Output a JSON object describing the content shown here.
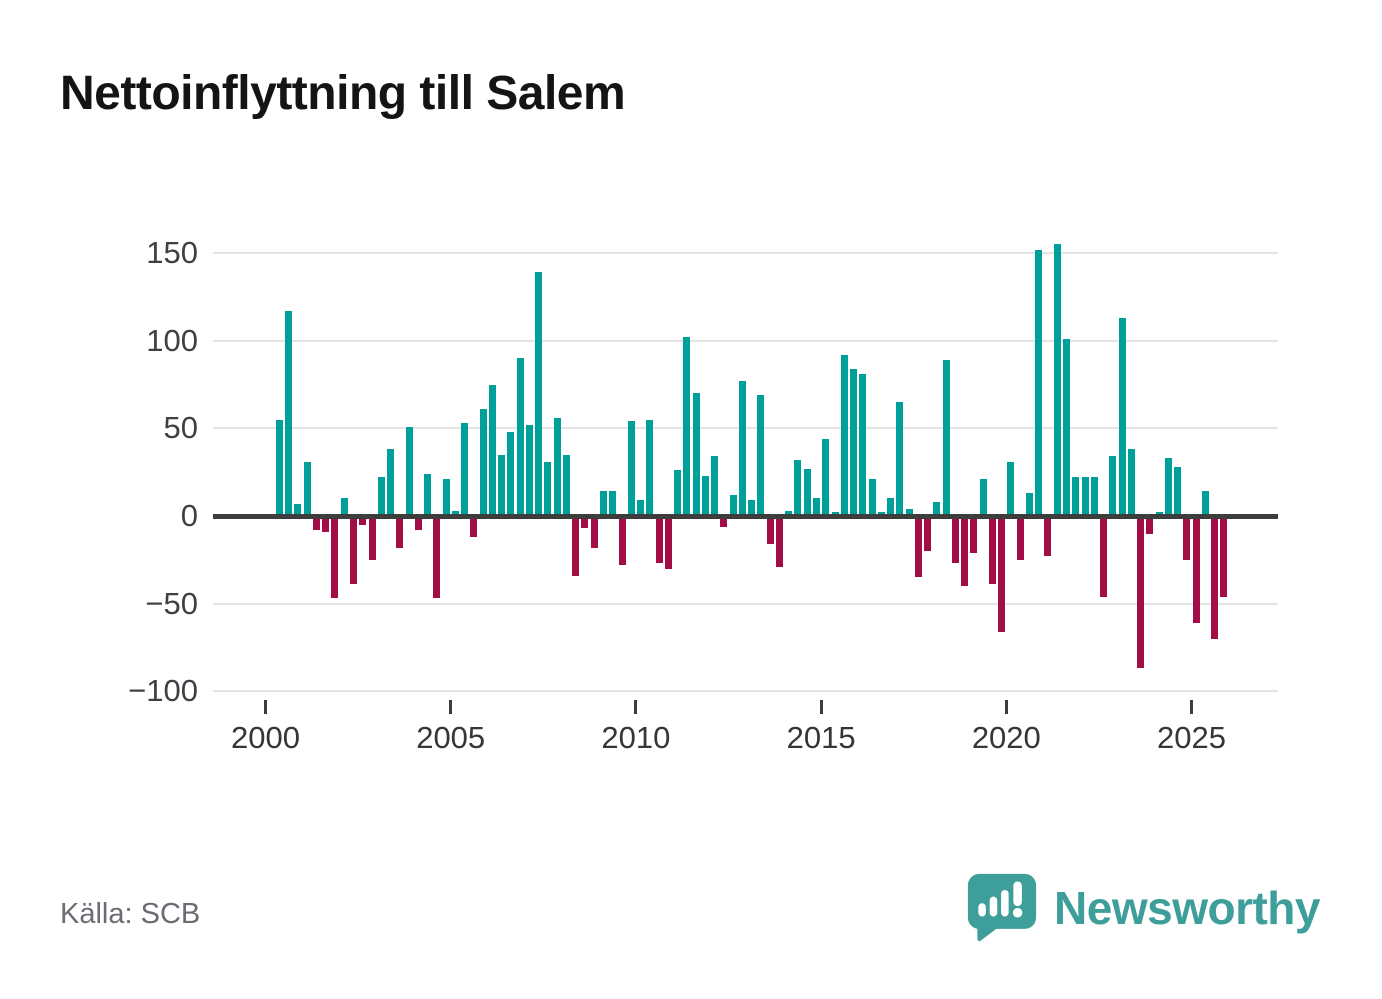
{
  "title": "Nettoinflyttning till Salem",
  "source": "Källa: SCB",
  "logo": {
    "text": "Newsworthy"
  },
  "colors": {
    "positive": "#00a09a",
    "negative": "#a30d45",
    "grid": "#e4e4e4",
    "zero_line": "#3d3d3d",
    "axis_text": "#3f3f46",
    "title_text": "#141414",
    "source_text": "#6b6b74",
    "logo_teal": "#3d9e9a"
  },
  "chart_data": {
    "type": "bar",
    "title": "Nettoinflyttning till Salem",
    "xlabel": "",
    "ylabel": "",
    "ylim": [
      -100,
      150
    ],
    "yticks": [
      150,
      100,
      50,
      0,
      -50,
      -100
    ],
    "ytick_labels": [
      "150",
      "100",
      "50",
      "0",
      "−50",
      "−100"
    ],
    "xticks": [
      2000,
      2005,
      2010,
      2015,
      2020,
      2025
    ],
    "xtick_labels": [
      "2000",
      "2005",
      "2010",
      "2015",
      "2020",
      "2025"
    ],
    "grid": true,
    "legend": false,
    "bar_period": "quarterly",
    "points": [
      {
        "t": "2000-Q2",
        "v": 55
      },
      {
        "t": "2000-Q3",
        "v": 117
      },
      {
        "t": "2000-Q4",
        "v": 7
      },
      {
        "t": "2001-Q1",
        "v": 31
      },
      {
        "t": "2001-Q2",
        "v": -8
      },
      {
        "t": "2001-Q3",
        "v": -9
      },
      {
        "t": "2001-Q4",
        "v": -47
      },
      {
        "t": "2002-Q1",
        "v": 10
      },
      {
        "t": "2002-Q2",
        "v": -39
      },
      {
        "t": "2002-Q3",
        "v": -5
      },
      {
        "t": "2002-Q4",
        "v": -25
      },
      {
        "t": "2003-Q1",
        "v": 22
      },
      {
        "t": "2003-Q2",
        "v": 38
      },
      {
        "t": "2003-Q3",
        "v": -18
      },
      {
        "t": "2003-Q4",
        "v": 51
      },
      {
        "t": "2004-Q1",
        "v": -8
      },
      {
        "t": "2004-Q2",
        "v": 24
      },
      {
        "t": "2004-Q3",
        "v": -47
      },
      {
        "t": "2004-Q4",
        "v": 21
      },
      {
        "t": "2005-Q1",
        "v": 3
      },
      {
        "t": "2005-Q2",
        "v": 53
      },
      {
        "t": "2005-Q3",
        "v": -12
      },
      {
        "t": "2005-Q4",
        "v": 61
      },
      {
        "t": "2006-Q1",
        "v": 75
      },
      {
        "t": "2006-Q2",
        "v": 35
      },
      {
        "t": "2006-Q3",
        "v": 48
      },
      {
        "t": "2006-Q4",
        "v": 90
      },
      {
        "t": "2007-Q1",
        "v": 52
      },
      {
        "t": "2007-Q2",
        "v": 139
      },
      {
        "t": "2007-Q3",
        "v": 31
      },
      {
        "t": "2007-Q4",
        "v": 56
      },
      {
        "t": "2008-Q1",
        "v": 35
      },
      {
        "t": "2008-Q2",
        "v": -34
      },
      {
        "t": "2008-Q3",
        "v": -7
      },
      {
        "t": "2008-Q4",
        "v": -18
      },
      {
        "t": "2009-Q1",
        "v": 14
      },
      {
        "t": "2009-Q2",
        "v": 14
      },
      {
        "t": "2009-Q3",
        "v": -28
      },
      {
        "t": "2009-Q4",
        "v": 54
      },
      {
        "t": "2010-Q1",
        "v": 9
      },
      {
        "t": "2010-Q2",
        "v": 55
      },
      {
        "t": "2010-Q3",
        "v": -27
      },
      {
        "t": "2010-Q4",
        "v": -30
      },
      {
        "t": "2011-Q1",
        "v": 26
      },
      {
        "t": "2011-Q2",
        "v": 102
      },
      {
        "t": "2011-Q3",
        "v": 70
      },
      {
        "t": "2011-Q4",
        "v": 23
      },
      {
        "t": "2012-Q1",
        "v": 34
      },
      {
        "t": "2012-Q2",
        "v": -6
      },
      {
        "t": "2012-Q3",
        "v": 12
      },
      {
        "t": "2012-Q4",
        "v": 77
      },
      {
        "t": "2013-Q1",
        "v": 9
      },
      {
        "t": "2013-Q2",
        "v": 69
      },
      {
        "t": "2013-Q3",
        "v": -16
      },
      {
        "t": "2013-Q4",
        "v": -29
      },
      {
        "t": "2014-Q1",
        "v": 3
      },
      {
        "t": "2014-Q2",
        "v": 32
      },
      {
        "t": "2014-Q3",
        "v": 27
      },
      {
        "t": "2014-Q4",
        "v": 10
      },
      {
        "t": "2015-Q1",
        "v": 44
      },
      {
        "t": "2015-Q2",
        "v": 2
      },
      {
        "t": "2015-Q3",
        "v": 92
      },
      {
        "t": "2015-Q4",
        "v": 84
      },
      {
        "t": "2016-Q1",
        "v": 81
      },
      {
        "t": "2016-Q2",
        "v": 21
      },
      {
        "t": "2016-Q3",
        "v": 2
      },
      {
        "t": "2016-Q4",
        "v": 10
      },
      {
        "t": "2017-Q1",
        "v": 65
      },
      {
        "t": "2017-Q2",
        "v": 4
      },
      {
        "t": "2017-Q3",
        "v": -35
      },
      {
        "t": "2017-Q4",
        "v": -20
      },
      {
        "t": "2018-Q1",
        "v": 8
      },
      {
        "t": "2018-Q2",
        "v": 89
      },
      {
        "t": "2018-Q3",
        "v": -27
      },
      {
        "t": "2018-Q4",
        "v": -40
      },
      {
        "t": "2019-Q1",
        "v": -21
      },
      {
        "t": "2019-Q2",
        "v": 21
      },
      {
        "t": "2019-Q3",
        "v": -39
      },
      {
        "t": "2019-Q4",
        "v": -66
      },
      {
        "t": "2020-Q1",
        "v": 31
      },
      {
        "t": "2020-Q2",
        "v": -25
      },
      {
        "t": "2020-Q3",
        "v": 13
      },
      {
        "t": "2020-Q4",
        "v": 152
      },
      {
        "t": "2021-Q1",
        "v": -23
      },
      {
        "t": "2021-Q2",
        "v": 155
      },
      {
        "t": "2021-Q3",
        "v": 101
      },
      {
        "t": "2021-Q4",
        "v": 22
      },
      {
        "t": "2022-Q1",
        "v": 22
      },
      {
        "t": "2022-Q2",
        "v": 22
      },
      {
        "t": "2022-Q3",
        "v": -46
      },
      {
        "t": "2022-Q4",
        "v": 34
      },
      {
        "t": "2023-Q1",
        "v": 113
      },
      {
        "t": "2023-Q2",
        "v": 38
      },
      {
        "t": "2023-Q3",
        "v": -87
      },
      {
        "t": "2023-Q4",
        "v": -10
      },
      {
        "t": "2024-Q1",
        "v": 2
      },
      {
        "t": "2024-Q2",
        "v": 33
      },
      {
        "t": "2024-Q3",
        "v": 28
      },
      {
        "t": "2024-Q4",
        "v": -25
      },
      {
        "t": "2025-Q1",
        "v": -61
      },
      {
        "t": "2025-Q2",
        "v": 14
      },
      {
        "t": "2025-Q3",
        "v": -70
      },
      {
        "t": "2025-Q4",
        "v": -46
      }
    ]
  }
}
